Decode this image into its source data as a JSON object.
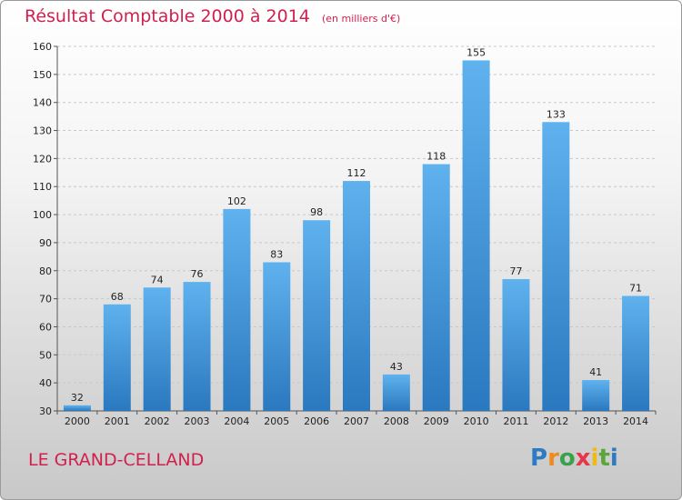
{
  "header": {
    "title": "Résultat Comptable 2000 à 2014",
    "subtitle": "(en milliers d'€)"
  },
  "footer": {
    "commune": "LE GRAND-CELLAND",
    "logo": {
      "letters": [
        "P",
        "r",
        "o",
        "x",
        "i",
        "t",
        "i"
      ],
      "colors": [
        "#2e7bc4",
        "#f08a1c",
        "#3aa24a",
        "#e8354a",
        "#f1b819",
        "#5aa63a",
        "#2e7bc4"
      ]
    }
  },
  "chart_data": {
    "type": "bar",
    "categories": [
      "2000",
      "2001",
      "2002",
      "2003",
      "2004",
      "2005",
      "2006",
      "2007",
      "2008",
      "2009",
      "2010",
      "2011",
      "2012",
      "2013",
      "2014"
    ],
    "values": [
      32,
      68,
      74,
      76,
      102,
      83,
      98,
      112,
      43,
      118,
      155,
      77,
      133,
      41,
      71
    ],
    "ylim": [
      30,
      160
    ],
    "yticks": [
      30,
      40,
      50,
      60,
      70,
      80,
      90,
      100,
      110,
      120,
      130,
      140,
      150,
      160
    ],
    "grid": true,
    "bar_color": "#4a9ee0"
  }
}
